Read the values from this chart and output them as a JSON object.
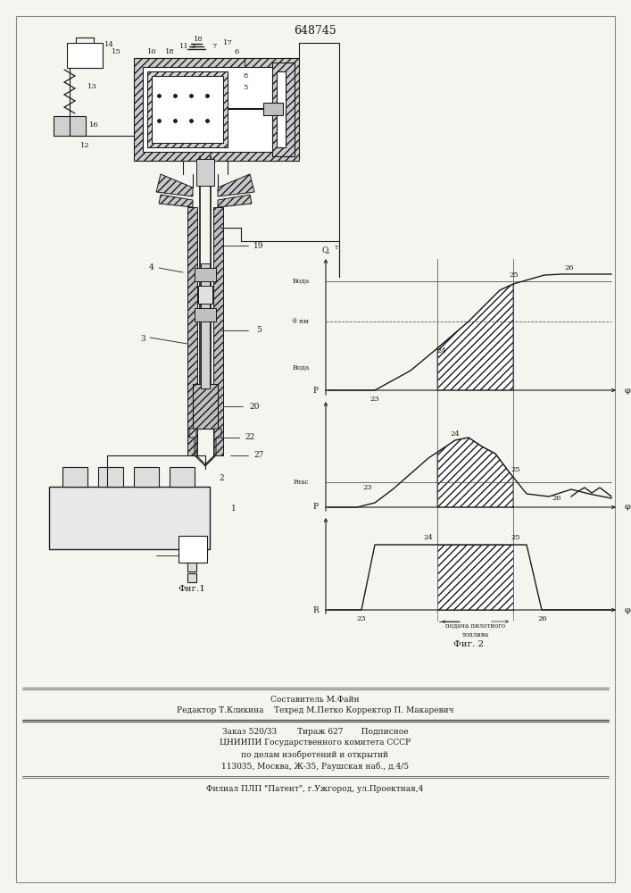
{
  "title": "648745",
  "bg_color": "#f5f5f0",
  "line_color": "#1a1a1a",
  "footer": {
    "line1": "Составитель М.Файн",
    "line2": "Редактор Т.Кликина    Техред М.Петко Корректор П. Макаревич",
    "line3": "Заказ 520/33        Тираж 627       Подписное",
    "line4": "ЦНИИПИ Государственного комитета СССР",
    "line5": "по делам изобретений и открытий",
    "line6": "113035, Москва, Ж-35, Раушская наб., д.4/5",
    "line7": "Филиал ПЛП \"Патент\", г.Ужгород, ул.Проектная,4"
  }
}
